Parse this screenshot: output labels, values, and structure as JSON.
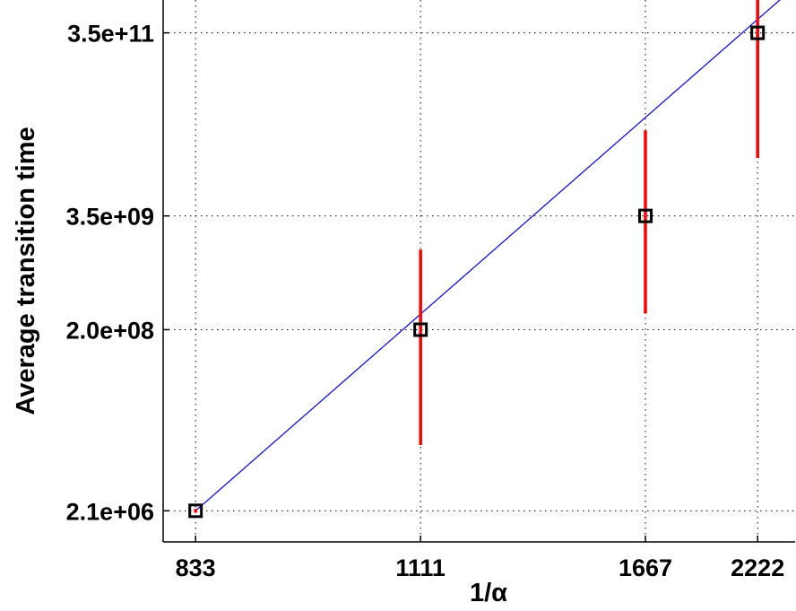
{
  "chart_data": {
    "type": "scatter",
    "title": "",
    "xlabel": "1/α",
    "ylabel": "Average transition time",
    "xscale": "reciprocal",
    "yscale": "log",
    "grid": true,
    "x_ticks": [
      833,
      1111,
      1667,
      2222
    ],
    "x_tick_labels": [
      "833",
      "1111",
      "1667",
      "2222"
    ],
    "y_ticks": [
      2100000,
      200000000,
      3500000000,
      350000000000
    ],
    "y_tick_labels": [
      "2.1e+06",
      "2.0e+08",
      "3.5e+09",
      "3.5e+11"
    ],
    "xlim": [
      804,
      2500
    ],
    "ylim": [
      960000,
      800000000000
    ],
    "points": [
      {
        "x": 833,
        "y": 2100000,
        "err_low": 2000000,
        "err_high": 2200000
      },
      {
        "x": 1111,
        "y": 200000000,
        "err_low": 11000000,
        "err_high": 1500000000
      },
      {
        "x": 1667,
        "y": 3500000000,
        "err_low": 300000000,
        "err_high": 30000000000
      },
      {
        "x": 2222,
        "y": 350000000000,
        "err_low": 15000000000,
        "err_high": 1100000000000
      }
    ],
    "fit_line": {
      "x": [
        833,
        2500
      ],
      "y": [
        2100000,
        1120000000000
      ]
    },
    "colors": {
      "marker": "#000000",
      "error_bar": "#ff0000",
      "fit_line": "#0000ff",
      "grid": "#000000"
    }
  }
}
